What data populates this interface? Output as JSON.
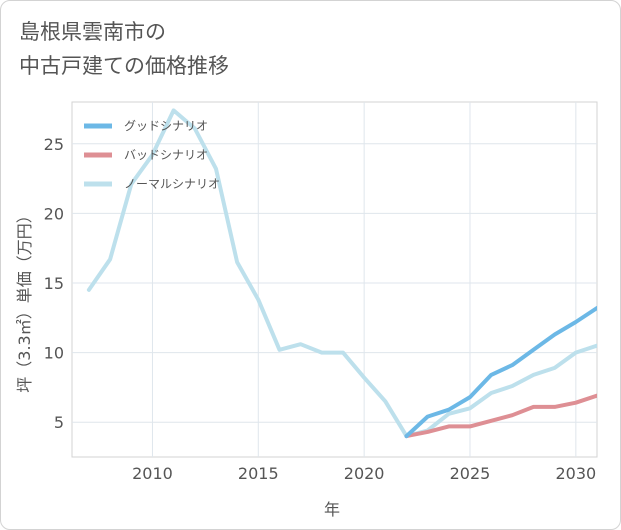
{
  "title_line1": "島根県雲南市の",
  "title_line2": "中古戸建ての価格推移",
  "chart_data": {
    "type": "line",
    "xlabel": "年",
    "ylabel": "坪（3.3㎡）単価（万円）",
    "xlim": [
      2006.2,
      2031
    ],
    "ylim": [
      2.5,
      28
    ],
    "xticks": [
      2010,
      2015,
      2020,
      2025,
      2030
    ],
    "yticks": [
      5,
      10,
      15,
      20,
      25
    ],
    "grid": true,
    "legend_position": "top-left",
    "series": [
      {
        "name": "グッドシナリオ",
        "color": "#6cb8e6",
        "x": [
          2022,
          2023,
          2024,
          2025,
          2026,
          2027,
          2028,
          2029,
          2030,
          2031
        ],
        "y": [
          4.0,
          5.4,
          5.9,
          6.8,
          8.4,
          9.1,
          10.2,
          11.3,
          12.2,
          13.2
        ]
      },
      {
        "name": "バッドシナリオ",
        "color": "#de8f94",
        "x": [
          2022,
          2023,
          2024,
          2025,
          2026,
          2027,
          2028,
          2029,
          2030,
          2031
        ],
        "y": [
          4.0,
          4.3,
          4.7,
          4.7,
          5.1,
          5.5,
          6.1,
          6.1,
          6.4,
          6.9
        ]
      },
      {
        "name": "ノーマルシナリオ",
        "color": "#bde0ec",
        "x": [
          2007,
          2008,
          2009,
          2010,
          2011,
          2012,
          2013,
          2014,
          2015,
          2016,
          2017,
          2018,
          2019,
          2020,
          2021,
          2022,
          2023,
          2024,
          2025,
          2026,
          2027,
          2028,
          2029,
          2030,
          2031
        ],
        "y": [
          14.5,
          16.7,
          22.1,
          24.2,
          27.4,
          26.1,
          23.2,
          16.5,
          13.8,
          10.2,
          10.6,
          10.0,
          10.0,
          8.2,
          6.5,
          4.0,
          4.4,
          5.6,
          6.0,
          7.1,
          7.6,
          8.4,
          8.9,
          10.0,
          10.5
        ]
      }
    ]
  }
}
